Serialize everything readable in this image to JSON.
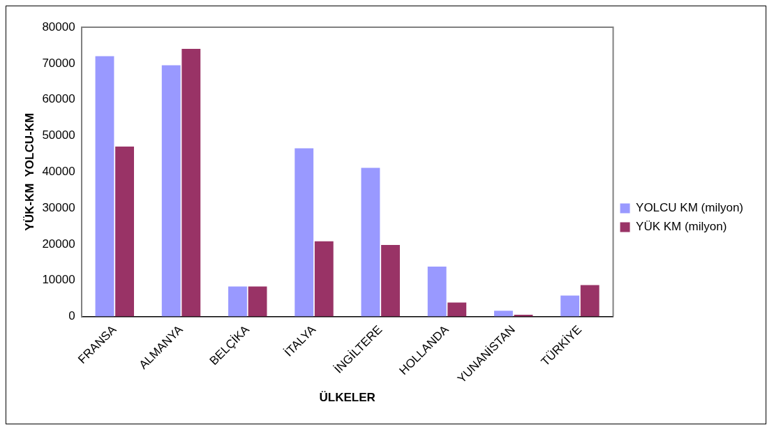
{
  "chart_data": {
    "type": "bar",
    "xlabel": "ÜLKELER",
    "ylabel": "YÜK-KM  YOLCU-KM",
    "categories": [
      "FRANSA",
      "ALMANYA",
      "BELÇİKA",
      "İTALYA",
      "İNGİLTERE",
      "HOLLANDA",
      "YUNANİSTAN",
      "TÜRKİYE"
    ],
    "series": [
      {
        "name": "YOLCU KM (milyon)",
        "color": "#9999ff",
        "values": [
          72000,
          69500,
          8300,
          46500,
          41100,
          13800,
          1600,
          5800
        ]
      },
      {
        "name": "YÜK KM (milyon)",
        "color": "#993366",
        "values": [
          47000,
          74000,
          8300,
          20800,
          19800,
          3900,
          500,
          8700
        ]
      }
    ],
    "ylim": [
      0,
      80000
    ],
    "yticks": [
      0,
      10000,
      20000,
      30000,
      40000,
      50000,
      60000,
      70000,
      80000
    ],
    "grid": false,
    "legend": "right"
  }
}
